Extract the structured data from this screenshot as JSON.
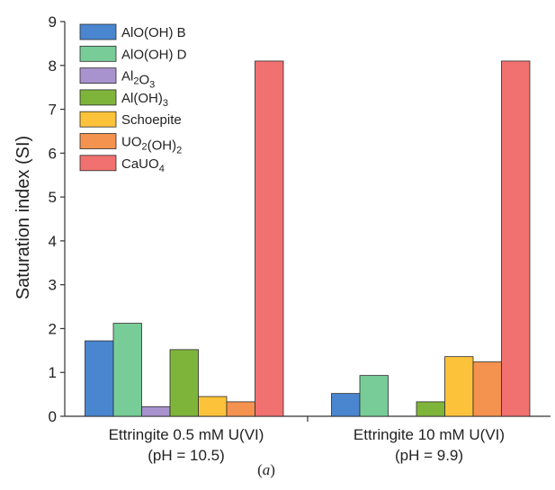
{
  "chart_data": {
    "type": "bar",
    "ylabel": "Saturation index (SI)",
    "ylim": [
      0,
      9
    ],
    "yticks": [
      "0",
      "1",
      "2",
      "3",
      "4",
      "5",
      "6",
      "7",
      "8",
      "9"
    ],
    "categories": [
      {
        "line1": "Ettringite 0.5 mM U(VI)",
        "line2": "(pH = 10.5)"
      },
      {
        "line1": "Ettringite 10 mM U(VI)",
        "line2": "(pH = 9.9)"
      }
    ],
    "legend_position": "top-left",
    "series": [
      {
        "name": "AlO(OH) B",
        "color": "#4a86d0",
        "values": [
          1.72,
          0.52
        ]
      },
      {
        "name": "AlO(OH) D",
        "color": "#78cc98",
        "values": [
          2.12,
          0.93
        ]
      },
      {
        "name": "Al2O3",
        "color": "#a893ce",
        "values": [
          0.22,
          null
        ]
      },
      {
        "name": "Al(OH)3",
        "color": "#7fb43b",
        "values": [
          1.52,
          0.33
        ]
      },
      {
        "name": "Schoepite",
        "color": "#fcc33a",
        "values": [
          0.45,
          1.36
        ]
      },
      {
        "name": "UO2(OH)2",
        "color": "#f4924f",
        "values": [
          0.33,
          1.24
        ]
      },
      {
        "name": "CaUO4",
        "color": "#f0716f",
        "values": [
          8.1,
          8.1
        ]
      }
    ]
  },
  "caption": {
    "open": "(",
    "letter": "a",
    "close": ")"
  }
}
